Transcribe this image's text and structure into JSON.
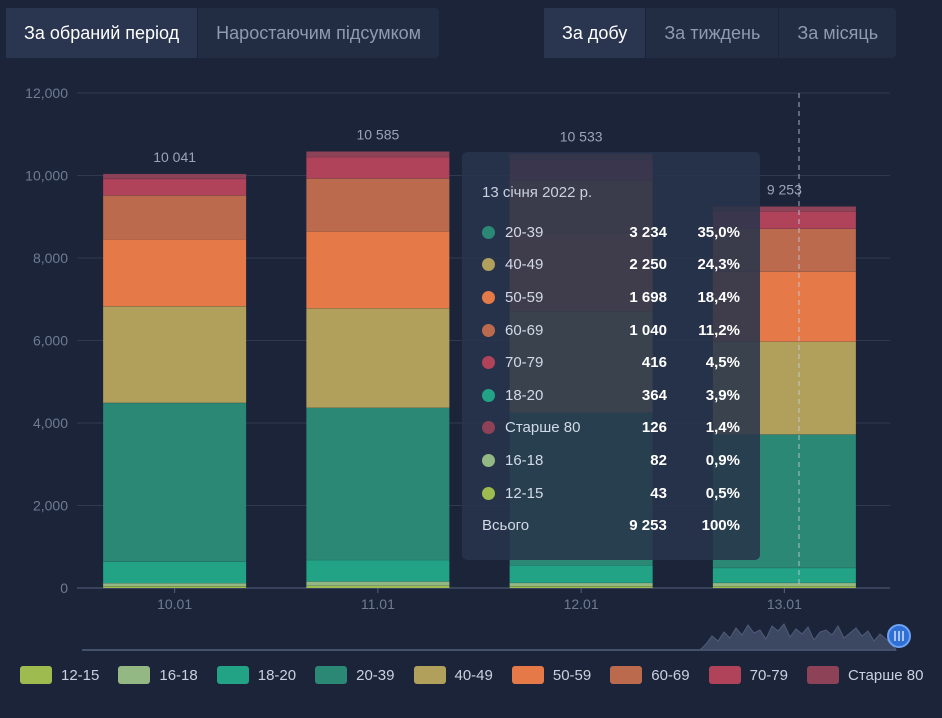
{
  "tabs_left": [
    {
      "label": "За обраний період",
      "active": true
    },
    {
      "label": "Наростаючим підсумком",
      "active": false
    }
  ],
  "tabs_right": [
    {
      "label": "За добу",
      "active": true
    },
    {
      "label": "За тиждень",
      "active": false
    },
    {
      "label": "За місяць",
      "active": false
    }
  ],
  "colors": {
    "12-15": "#9dbb4e",
    "16-18": "#94b884",
    "18-20": "#22a386",
    "20-39": "#2b8875",
    "40-49": "#b0a05b",
    "50-59": "#e57a48",
    "60-69": "#bb6a4e",
    "70-79": "#b0435a",
    "Старше 80": "#8e4257"
  },
  "chart_data": {
    "type": "bar",
    "stacked": true,
    "categories": [
      "10.01",
      "11.01",
      "12.01",
      "13.01"
    ],
    "ylim": [
      0,
      12000
    ],
    "yticks": [
      "0",
      "2,000",
      "4,000",
      "6,000",
      "8,000",
      "10,000",
      "12,000"
    ],
    "grid": true,
    "totals": [
      "10 041",
      "10 585",
      "10 533",
      "9 253"
    ],
    "series": [
      {
        "name": "12-15",
        "values": [
          45,
          55,
          45,
          43
        ]
      },
      {
        "name": "16-18",
        "values": [
          75,
          105,
          80,
          82
        ]
      },
      {
        "name": "18-20",
        "values": [
          520,
          520,
          430,
          364
        ]
      },
      {
        "name": "20-39",
        "values": [
          3850,
          3690,
          3700,
          3234
        ]
      },
      {
        "name": "40-49",
        "values": [
          2340,
          2410,
          2450,
          2250
        ]
      },
      {
        "name": "50-59",
        "values": [
          1630,
          1870,
          1900,
          1698
        ]
      },
      {
        "name": "60-69",
        "values": [
          1060,
          1280,
          1270,
          1040
        ]
      },
      {
        "name": "70-79",
        "values": [
          400,
          520,
          520,
          416
        ]
      },
      {
        "name": "Старше 80",
        "values": [
          121,
          135,
          138,
          126
        ]
      }
    ]
  },
  "tooltip": {
    "date": "13 січня 2022 р.",
    "rows": [
      {
        "name": "20-39",
        "value": "3 234",
        "pct": "35,0%"
      },
      {
        "name": "40-49",
        "value": "2 250",
        "pct": "24,3%"
      },
      {
        "name": "50-59",
        "value": "1 698",
        "pct": "18,4%"
      },
      {
        "name": "60-69",
        "value": "1 040",
        "pct": "11,2%"
      },
      {
        "name": "70-79",
        "value": "416",
        "pct": "4,5%"
      },
      {
        "name": "18-20",
        "value": "364",
        "pct": "3,9%"
      },
      {
        "name": "Старше 80",
        "value": "126",
        "pct": "1,4%"
      },
      {
        "name": "16-18",
        "value": "82",
        "pct": "0,9%"
      },
      {
        "name": "12-15",
        "value": "43",
        "pct": "0,5%"
      }
    ],
    "total_label": "Всього",
    "total_value": "9 253",
    "total_pct": "100%"
  },
  "legend": [
    "12-15",
    "16-18",
    "18-20",
    "20-39",
    "40-49",
    "50-59",
    "60-69",
    "70-79",
    "Старше 80"
  ]
}
